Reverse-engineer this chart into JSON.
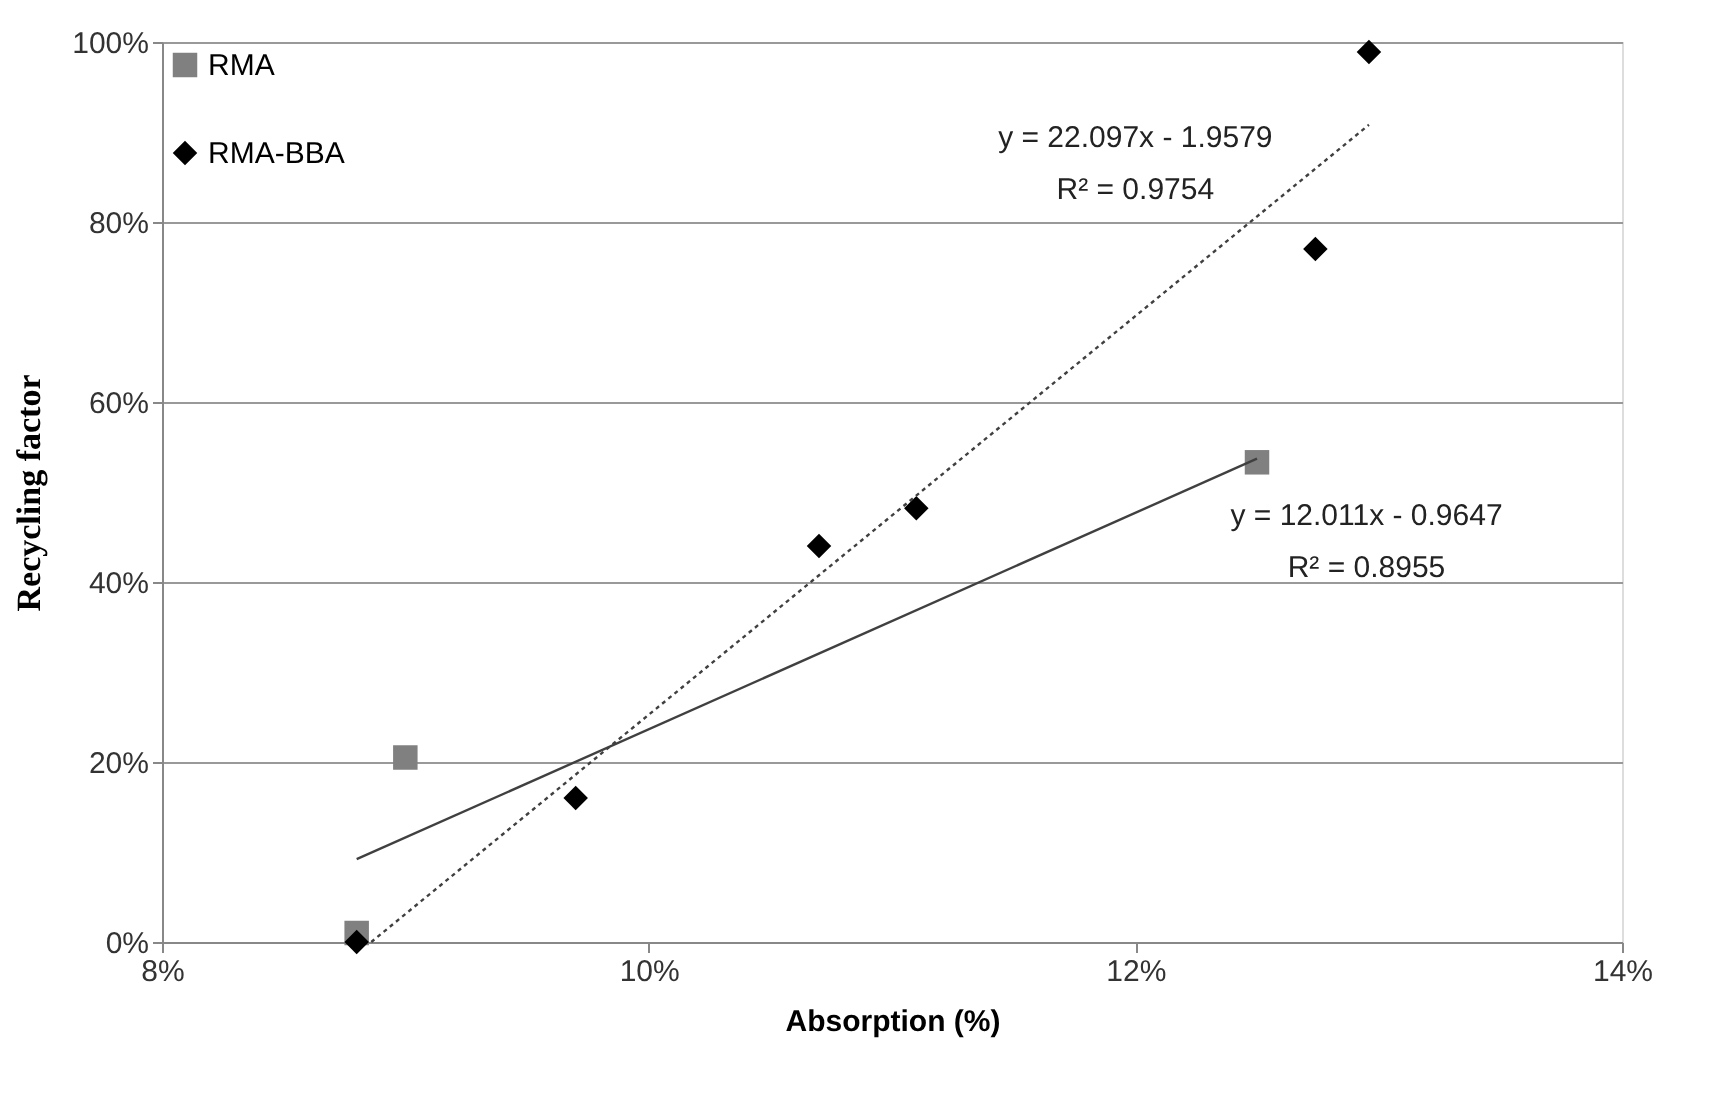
{
  "chart_data": {
    "type": "scatter",
    "xlabel": "Absorption (%)",
    "ylabel": "Recycling factor",
    "series": [
      {
        "name": "RMA",
        "marker": "square",
        "color": "#808080",
        "x": [
          8.8,
          9.0,
          12.5
        ],
        "values": [
          1,
          20.5,
          53.3
        ]
      },
      {
        "name": "RMA-BBA",
        "marker": "diamond",
        "color": "#000000",
        "x": [
          8.8,
          9.7,
          10.7,
          11.1,
          12.74,
          12.96
        ],
        "values": [
          0,
          16,
          44,
          48.2,
          77,
          98.9
        ]
      },
      {
        "type": "line",
        "line_style": "solid",
        "color": "#404040",
        "x": [
          8.8,
          12.5
        ],
        "values": [
          9.2,
          53.7
        ]
      },
      {
        "type": "line",
        "line_style": "dotted",
        "color": "#404040",
        "x": [
          8.86,
          12.96
        ],
        "values": [
          0,
          90.8
        ]
      }
    ],
    "annotations": [
      "y = 22.097x - 1.9579\nR² = 0.9754",
      "y = 12.011x - 0.9647\nR² = 0.8955"
    ],
    "xlim": [
      8,
      14
    ],
    "ylim": [
      0,
      100
    ],
    "xticks": [
      {
        "value": 8,
        "label": "8%"
      },
      {
        "value": 10,
        "label": "10%"
      },
      {
        "value": 12,
        "label": "12%"
      },
      {
        "value": 14,
        "label": "14%"
      }
    ],
    "yticks": [
      {
        "value": 0,
        "label": "0%"
      },
      {
        "value": 20,
        "label": "20%"
      },
      {
        "value": 40,
        "label": "40%"
      },
      {
        "value": 60,
        "label": "60%"
      },
      {
        "value": 80,
        "label": "80%"
      },
      {
        "value": 100,
        "label": "100%"
      }
    ],
    "grid": "y",
    "legend": "top left"
  }
}
